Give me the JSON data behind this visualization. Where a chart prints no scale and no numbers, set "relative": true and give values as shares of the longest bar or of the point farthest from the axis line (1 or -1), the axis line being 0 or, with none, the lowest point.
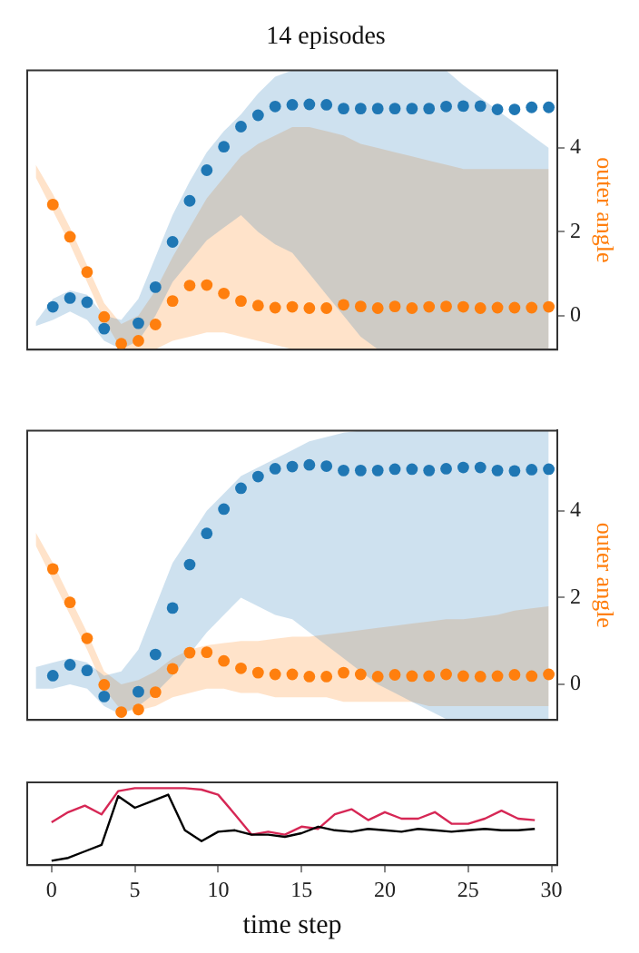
{
  "chart_data": [
    {
      "type": "scatter",
      "title": "14 episodes",
      "categories": [
        null,
        null,
        null,
        null,
        null,
        null,
        null,
        null,
        null,
        null,
        null,
        null,
        null,
        null,
        null,
        null,
        null,
        null,
        null,
        null,
        null,
        null,
        null,
        null,
        null,
        null,
        null,
        null,
        null,
        null,
        null
      ],
      "y2lim": [
        -0.81,
        5.85
      ],
      "y2ticks": [
        0,
        2,
        4
      ],
      "y2label": "outer angle",
      "marker": "circle",
      "series": [
        {
          "color": "#1f77b4",
          "axis": "y2",
          "values": [
            null,
            0.21,
            0.42,
            0.32,
            -0.31,
            null,
            -0.18,
            0.68,
            1.76,
            2.74,
            3.47,
            4.03,
            4.51,
            4.78,
            4.99,
            5.03,
            5.04,
            5.03,
            4.94,
            4.94,
            4.94,
            4.94,
            4.94,
            4.94,
            4.99,
            5.0,
            5.0,
            4.92,
            4.92,
            4.97,
            4.97
          ],
          "lower": [
            -0.25,
            -0.1,
            0.1,
            -0.1,
            -0.6,
            -0.8,
            -0.6,
            0,
            0.8,
            1.3,
            1.8,
            2.1,
            2.4,
            2.0,
            1.7,
            1.5,
            1.0,
            0.5,
            0,
            -0.5,
            -0.8,
            -0.8,
            -0.8,
            -0.8,
            -0.8,
            -0.8,
            -0.8,
            -0.8,
            -0.8,
            -0.8,
            -0.8
          ],
          "upper": [
            -0.15,
            0.4,
            0.6,
            0.5,
            0,
            -0.1,
            0.4,
            1.4,
            2.4,
            3.2,
            3.9,
            4.4,
            4.8,
            5.3,
            5.7,
            5.85,
            5.85,
            5.85,
            5.85,
            5.85,
            5.85,
            5.85,
            5.85,
            5.85,
            5.85,
            5.5,
            5.2,
            4.9,
            4.6,
            4.3,
            4.0
          ]
        },
        {
          "color": "#ff7f0e",
          "axis": "y2",
          "values": [
            null,
            2.65,
            1.88,
            1.04,
            -0.03,
            -0.67,
            -0.6,
            -0.21,
            0.35,
            0.72,
            0.73,
            0.53,
            0.35,
            0.24,
            0.19,
            0.21,
            0.18,
            0.18,
            0.26,
            0.22,
            0.18,
            0.22,
            0.18,
            0.21,
            0.22,
            0.21,
            0.18,
            0.19,
            0.19,
            0.19,
            0.21
          ],
          "lower": [
            3.3,
            2.5,
            1.7,
            0.8,
            -0.1,
            -0.8,
            -0.8,
            -0.8,
            -0.6,
            -0.5,
            -0.4,
            -0.4,
            -0.5,
            -0.6,
            -0.7,
            -0.8,
            -0.8,
            -0.8,
            -0.8,
            -0.8,
            -0.8,
            -0.8,
            -0.8,
            -0.8,
            -0.8,
            -0.8,
            -0.8,
            -0.8,
            -0.8,
            -0.8,
            -0.8
          ],
          "upper": [
            3.6,
            2.9,
            2.1,
            1.2,
            0.3,
            -0.2,
            0,
            0.6,
            1.4,
            2.1,
            2.8,
            3.3,
            3.8,
            4.1,
            4.3,
            4.5,
            4.5,
            4.4,
            4.3,
            4.1,
            4.0,
            3.9,
            3.8,
            3.7,
            3.6,
            3.5,
            3.5,
            3.5,
            3.5,
            3.5,
            3.5
          ]
        }
      ]
    },
    {
      "type": "scatter",
      "categories": [
        null,
        null,
        null,
        null,
        null,
        null,
        null,
        null,
        null,
        null,
        null,
        null,
        null,
        null,
        null,
        null,
        null,
        null,
        null,
        null,
        null,
        null,
        null,
        null,
        null,
        null,
        null,
        null,
        null,
        null,
        null
      ],
      "y2lim": [
        -0.82,
        5.85
      ],
      "y2ticks": [
        0,
        2,
        4
      ],
      "y2label": "outer angle",
      "marker": "circle",
      "series": [
        {
          "color": "#1f77b4",
          "axis": "y2",
          "values": [
            null,
            0.2,
            0.45,
            0.32,
            -0.28,
            null,
            -0.17,
            0.69,
            1.76,
            2.76,
            3.48,
            4.04,
            4.52,
            4.79,
            4.97,
            5.02,
            5.06,
            5.03,
            4.93,
            4.93,
            4.93,
            4.96,
            4.96,
            4.93,
            4.97,
            5.0,
            5.0,
            4.93,
            4.92,
            4.95,
            4.96
          ],
          "lower": [
            -0.1,
            -0.1,
            0,
            -0.1,
            -0.5,
            -0.7,
            -0.5,
            -0.2,
            0.2,
            0.7,
            1.2,
            1.6,
            2.0,
            1.8,
            1.6,
            1.5,
            1.2,
            0.9,
            0.6,
            0.3,
            0,
            -0.2,
            -0.4,
            -0.6,
            -0.8,
            -0.8,
            -0.8,
            -0.8,
            -0.8,
            -0.8,
            -0.8
          ],
          "upper": [
            0.4,
            0.5,
            0.6,
            0.5,
            0.2,
            0.3,
            0.8,
            1.8,
            2.8,
            3.4,
            4.0,
            4.4,
            4.8,
            5.0,
            5.2,
            5.4,
            5.6,
            5.7,
            5.8,
            5.85,
            5.85,
            5.85,
            5.85,
            5.85,
            5.85,
            5.85,
            5.85,
            5.85,
            5.85,
            5.85,
            5.85
          ]
        },
        {
          "color": "#ff7f0e",
          "axis": "y2",
          "values": [
            null,
            2.66,
            1.89,
            1.06,
            -0.01,
            -0.64,
            -0.58,
            -0.18,
            0.36,
            0.73,
            0.74,
            0.54,
            0.37,
            0.27,
            0.23,
            0.23,
            0.18,
            0.18,
            0.27,
            0.23,
            0.18,
            0.22,
            0.19,
            0.19,
            0.23,
            0.19,
            0.18,
            0.19,
            0.22,
            0.19,
            0.23
          ],
          "lower": [
            3.2,
            2.4,
            1.6,
            0.8,
            -0.1,
            -0.6,
            -0.6,
            -0.5,
            -0.3,
            -0.2,
            -0.1,
            -0.1,
            -0.2,
            -0.2,
            -0.3,
            -0.3,
            -0.3,
            -0.3,
            -0.4,
            -0.4,
            -0.4,
            -0.4,
            -0.4,
            -0.5,
            -0.5,
            -0.5,
            -0.5,
            -0.5,
            -0.5,
            -0.5,
            -0.5
          ],
          "upper": [
            3.5,
            2.8,
            2.0,
            1.2,
            0.3,
            0,
            0.1,
            0.3,
            0.6,
            0.8,
            0.9,
            0.95,
            1.0,
            1.0,
            1.05,
            1.1,
            1.1,
            1.15,
            1.2,
            1.25,
            1.3,
            1.35,
            1.4,
            1.45,
            1.5,
            1.5,
            1.55,
            1.6,
            1.7,
            1.75,
            1.8
          ]
        }
      ]
    },
    {
      "type": "line",
      "relative": true,
      "xlabel": "time step",
      "xlim": [
        -1.46,
        30.35
      ],
      "xticks": [
        0,
        5,
        10,
        15,
        20,
        25,
        30
      ],
      "marker": "none",
      "x": [
        0,
        1,
        2,
        3,
        4,
        5,
        6,
        7,
        8,
        9,
        10,
        11,
        12,
        13,
        14,
        15,
        16,
        17,
        18,
        19,
        20,
        21,
        22,
        23,
        24,
        25,
        26,
        27,
        28,
        29
      ],
      "series": [
        {
          "color": "#000000",
          "values": [
            0,
            0.04,
            0.13,
            0.22,
            0.89,
            0.73,
            0.82,
            0.91,
            0.42,
            0.27,
            0.4,
            0.42,
            0.36,
            0.36,
            0.33,
            0.38,
            0.47,
            0.42,
            0.4,
            0.44,
            0.42,
            0.4,
            0.44,
            0.42,
            0.4,
            0.42,
            0.44,
            0.42,
            0.42,
            0.44
          ]
        },
        {
          "color": "#d62755",
          "values": [
            0.53,
            0.67,
            0.76,
            0.64,
            0.96,
            1,
            1,
            1,
            1,
            0.98,
            0.91,
            0.64,
            0.36,
            0.4,
            0.36,
            0.47,
            0.44,
            0.64,
            0.71,
            0.56,
            0.67,
            0.58,
            0.58,
            0.67,
            0.51,
            0.51,
            0.58,
            0.69,
            0.58,
            0.56
          ]
        }
      ]
    }
  ]
}
